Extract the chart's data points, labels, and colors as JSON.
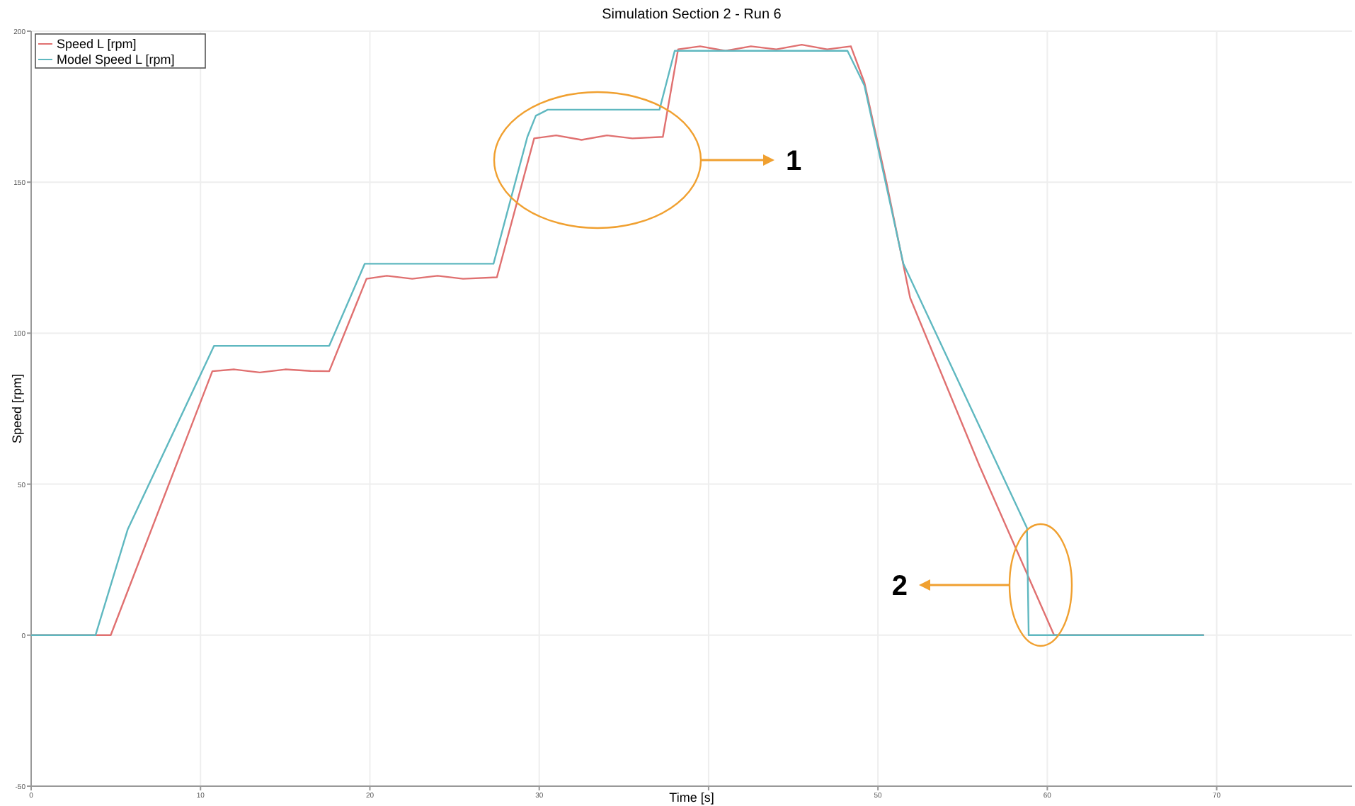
{
  "chart_data": {
    "type": "line",
    "title": "Simulation Section 2 - Run 6",
    "xlabel": "Time [s]",
    "ylabel": "Speed [rpm]",
    "xlim": [
      0,
      78
    ],
    "xticks": [
      0,
      10,
      20,
      30,
      {
        "value": 40,
        "label": null
      },
      50,
      60,
      70
    ],
    "ylim": [
      -50,
      200
    ],
    "yticks": [
      -50,
      0,
      50,
      100,
      150,
      200
    ],
    "grid": true,
    "legend": "top left",
    "line_style": "solid",
    "marker": "none",
    "series": [
      {
        "name": "Speed L [rpm]",
        "color": "#e07070",
        "x": [
          0,
          4.7,
          10.7,
          12,
          13.5,
          15,
          16.5,
          17.6,
          19.8,
          21,
          22.5,
          24,
          25.5,
          27.5,
          29.7,
          31,
          32.5,
          34,
          35.5,
          37.3,
          38.2,
          39.5,
          41,
          42.5,
          44,
          45.5,
          47,
          48.4,
          49.2,
          50.5,
          51.9,
          56,
          60.4,
          69.25
        ],
        "values": [
          0,
          0,
          87.4,
          88,
          87,
          88,
          87.5,
          87.4,
          118,
          119,
          118,
          119,
          118,
          118.5,
          164.5,
          165.5,
          164,
          165.5,
          164.5,
          165,
          194,
          195,
          193.5,
          195,
          194,
          195.5,
          194,
          195,
          183,
          150,
          111.7,
          56,
          0,
          0
        ]
      },
      {
        "name": "Model Speed L [rpm]",
        "color": "#5fb8c0",
        "x": [
          0,
          3.8,
          5.7,
          10.8,
          17.6,
          19.7,
          27.3,
          29.3,
          29.8,
          30.5,
          37.1,
          38,
          48.2,
          49.2,
          51.5,
          58.8,
          58.9,
          69.25
        ],
        "values": [
          0,
          0,
          35,
          95.8,
          95.8,
          123,
          123,
          165,
          172,
          174,
          174,
          193.5,
          193.5,
          182,
          123,
          35.5,
          0,
          0
        ]
      }
    ],
    "annotations": [
      "1",
      "2"
    ]
  }
}
